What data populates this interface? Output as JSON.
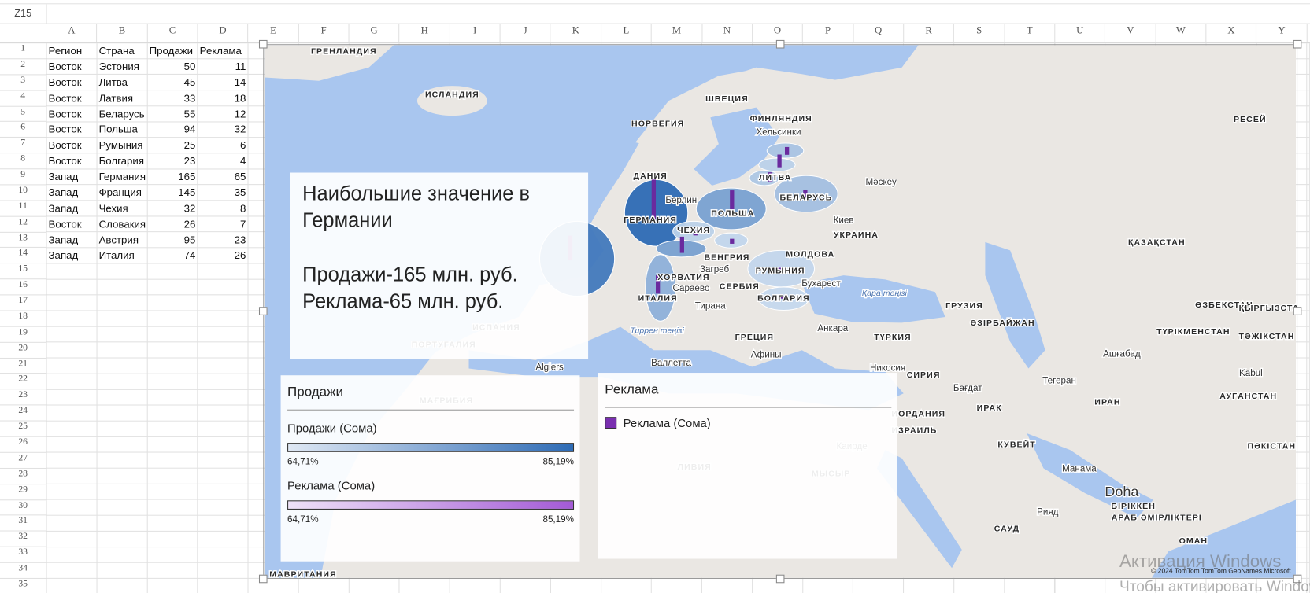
{
  "name_box": "Z15",
  "columns": [
    "A",
    "B",
    "C",
    "D",
    "E",
    "F",
    "G",
    "H",
    "I",
    "J",
    "K",
    "L",
    "M",
    "N",
    "O",
    "P",
    "Q",
    "R",
    "S",
    "T",
    "U",
    "V",
    "W",
    "X",
    "Y"
  ],
  "row_numbers": [
    1,
    2,
    3,
    4,
    5,
    6,
    7,
    8,
    9,
    10,
    11,
    12,
    13,
    14,
    15,
    16,
    17,
    18,
    19,
    20,
    21,
    22,
    23,
    24,
    25,
    26,
    27,
    28,
    29,
    30,
    31,
    32,
    33,
    34,
    35
  ],
  "table": {
    "header": [
      "Регион",
      "Страна",
      "Продажи",
      "Реклама"
    ],
    "rows": [
      [
        "Восток",
        "Эстония",
        50,
        11
      ],
      [
        "Восток",
        "Литва",
        45,
        14
      ],
      [
        "Восток",
        "Латвия",
        33,
        18
      ],
      [
        "Восток",
        "Беларусь",
        55,
        12
      ],
      [
        "Восток",
        "Польша",
        94,
        32
      ],
      [
        "Восток",
        "Румыния",
        25,
        6
      ],
      [
        "Восток",
        "Болгария",
        23,
        4
      ],
      [
        "Запад",
        "Германия",
        165,
        65
      ],
      [
        "Запад",
        "Франция",
        145,
        35
      ],
      [
        "Запад",
        "Чехия",
        32,
        8
      ],
      [
        "Восток",
        "Словакия",
        26,
        7
      ],
      [
        "Запад",
        "Австрия",
        95,
        23
      ],
      [
        "Запад",
        "Италия",
        74,
        26
      ]
    ]
  },
  "map": {
    "info_box": {
      "lines": [
        "Наибольшие значение в",
        "Германии",
        "Продажи-165 млн. руб.",
        "Реклама-65 млн. руб."
      ]
    },
    "legend_sales": {
      "title": "Продажи",
      "series": [
        {
          "name": "Продажи (Сома)",
          "min_label": "64,71%",
          "max_label": "85,19%"
        },
        {
          "name": "Реклама (Сома)",
          "min_label": "64,71%",
          "max_label": "85,19%"
        }
      ]
    },
    "legend_ads": {
      "title": "Реклама",
      "item": "Реклама (Сома)"
    },
    "labels": [
      "ГРЕНЛАНДИЯ",
      "ИСЛАНДИЯ",
      "НОРВЕГИЯ",
      "ШВЕЦИЯ",
      "ФИНЛЯНДИЯ",
      "Хельсинки",
      "РЕСЕЙ",
      "ДАНИЯ",
      "ЛИТВА",
      "БЕЛАРУСЬ",
      "Берлин",
      "ПОЛЬША",
      "ГЕРМАНИЯ",
      "Мәскеу",
      "Киев",
      "УКРАИНА",
      "ЧЕХИЯ",
      "ҚАЗАҚСТАН",
      "ВЕНГРИЯ",
      "МОЛДОВА",
      "Загреб",
      "РУМЫНИЯ",
      "ХОРВАТИЯ",
      "Бухарест",
      "СЕРБИЯ",
      "Сараево",
      "ИТАЛИЯ",
      "БОЛГАРИЯ",
      "Қара теңізі",
      "Тирана",
      "ГРУЗИЯ",
      "ӘЗІРБАЙЖАН",
      "ӨЗБЕКСТАН",
      "ҚЫРҒЫЗСТАН",
      "Анкара",
      "ТҮРКИЯ",
      "ТҮРІКМЕНСТАН",
      "ТӘЖІКСТАН",
      "Тиррен теңізі",
      "ГРЕЦИЯ",
      "Ашғабад",
      "Афины",
      "ИСПАНИЯ",
      "ПОРТУГАЛИЯ",
      "Валлетта",
      "Algiers",
      "Никосия",
      "СИРИЯ",
      "Kabul",
      "Тегеран",
      "Бағдат",
      "АУҒАНСТАН",
      "МАҒРИБИЯ",
      "ИРАН",
      "ИРАК",
      "ИОРДАНИЯ",
      "ИЗРАИЛЬ",
      "КУВЕЙТ",
      "Каирде",
      "ПӘКІСТАН",
      "ЛИВИЯ",
      "Манама",
      "МЫСЫР",
      "Doha",
      "БІРІККЕН",
      "АРАБ ӘМІРЛІКТЕРІ",
      "Рияд",
      "САУД",
      "ОМАН",
      "МАВРИТАНИЯ"
    ],
    "copyright": "© 2024 TomTom  TomTom  GeoNames  Microsoft"
  },
  "watermark": {
    "line1": "Активация Windows",
    "line2": "Чтобы активировать Windows,"
  }
}
